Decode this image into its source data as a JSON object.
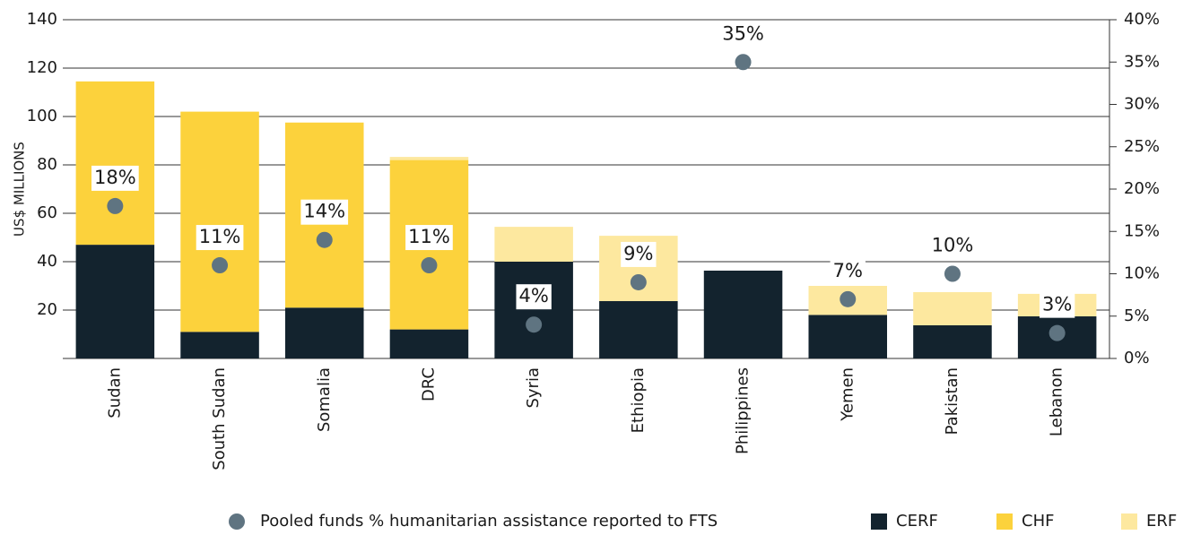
{
  "chart_data": {
    "type": "bar",
    "y_axis_label": "US$ MILLIONS",
    "categories": [
      "Sudan",
      "South Sudan",
      "Somalia",
      "DRC",
      "Syria",
      "Ethiopia",
      "Philippines",
      "Yemen",
      "Pakistan",
      "Lebanon"
    ],
    "series": [
      {
        "name": "CERF",
        "color": "#13232e",
        "values": [
          47,
          11,
          21,
          12,
          40,
          23.7,
          36.3,
          18,
          13.7,
          17.4
        ]
      },
      {
        "name": "CHF",
        "color": "#fcd23c",
        "values": [
          67.5,
          91,
          76.5,
          70,
          0,
          0,
          0,
          0,
          0,
          0
        ]
      },
      {
        "name": "ERF",
        "color": "#fde89f",
        "values": [
          0,
          0,
          0,
          1.3,
          14.4,
          27,
          0,
          12,
          13.7,
          9.3
        ]
      },
      {
        "name": "Pooled funds % humanitarian assistance reported to FTS",
        "color": "#5f7481",
        "type": "scatter",
        "axis": "y2",
        "values": [
          18,
          11,
          14,
          11,
          4,
          9,
          35,
          7,
          10,
          3
        ],
        "value_labels": [
          "18%",
          "11%",
          "14%",
          "11%",
          "4%",
          "9%",
          "35%",
          "7%",
          "10%",
          "3%"
        ]
      }
    ],
    "stacked": true,
    "ylim": [
      0,
      140
    ],
    "yticks": [
      20,
      40,
      60,
      80,
      100,
      120,
      140
    ],
    "y2lim": [
      0,
      40
    ],
    "y2ticks": [
      {
        "value": 0,
        "label": "0%"
      },
      {
        "value": 5,
        "label": "5%"
      },
      {
        "value": 10,
        "label": "10%"
      },
      {
        "value": 15,
        "label": "15%"
      },
      {
        "value": 20,
        "label": "20%"
      },
      {
        "value": 25,
        "label": "25%"
      },
      {
        "value": 30,
        "label": "30%"
      },
      {
        "value": 35,
        "label": "35%"
      },
      {
        "value": 40,
        "label": "40%"
      }
    ],
    "grid": true,
    "legend": "bottom"
  }
}
